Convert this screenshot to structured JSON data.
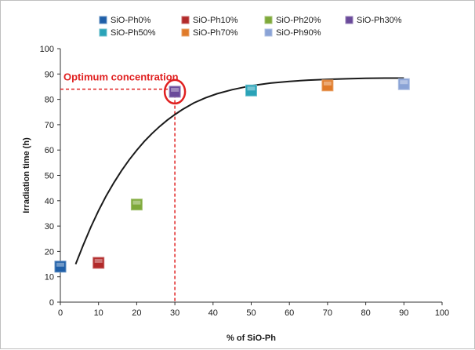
{
  "chart_data": {
    "type": "scatter",
    "xlabel": "% of SiO-Ph",
    "ylabel": "Irradiation time (h)",
    "xlim": [
      0,
      100
    ],
    "ylim": [
      0,
      100
    ],
    "xticks": [
      0,
      10,
      20,
      30,
      40,
      50,
      60,
      70,
      80,
      90,
      100
    ],
    "yticks": [
      0,
      10,
      20,
      30,
      40,
      50,
      60,
      70,
      80,
      90,
      100
    ],
    "grid": false,
    "legend_position": "top",
    "series": [
      {
        "name": "SiO-Ph0%",
        "x": 0,
        "y": 14,
        "color": "#1f5fa8"
      },
      {
        "name": "SiO-Ph10%",
        "x": 10,
        "y": 15.5,
        "color": "#b22a2a"
      },
      {
        "name": "SiO-Ph20%",
        "x": 20,
        "y": 38.5,
        "color": "#7ea93a"
      },
      {
        "name": "SiO-Ph30%",
        "x": 30,
        "y": 83,
        "color": "#6a4a9a"
      },
      {
        "name": "SiO-Ph50%",
        "x": 50,
        "y": 83.5,
        "color": "#2aa3b8"
      },
      {
        "name": "SiO-Ph70%",
        "x": 70,
        "y": 85.5,
        "color": "#e07b2a"
      },
      {
        "name": "SiO-Ph90%",
        "x": 90,
        "y": 86,
        "color": "#8aa3d6"
      }
    ],
    "fit_curve": {
      "x": [
        4,
        6,
        8,
        10,
        12,
        14,
        16,
        18,
        20,
        22,
        24,
        26,
        28,
        30,
        32,
        35,
        38,
        41,
        45,
        50,
        55,
        60,
        65,
        70,
        75,
        80,
        85,
        90
      ],
      "y": [
        15,
        22.5,
        29.7,
        36.1,
        41.9,
        47.1,
        51.8,
        56.1,
        59.9,
        63.4,
        66.5,
        69.3,
        71.8,
        74.0,
        76.0,
        78.6,
        80.6,
        82.2,
        83.8,
        85.4,
        86.4,
        87.1,
        87.6,
        87.9,
        88.1,
        88.3,
        88.4,
        88.4
      ],
      "color": "#1a1a1a"
    },
    "annotation": {
      "text": "Optimum concentration",
      "color": "#e02020",
      "target_x": 30,
      "target_y": 84
    }
  }
}
